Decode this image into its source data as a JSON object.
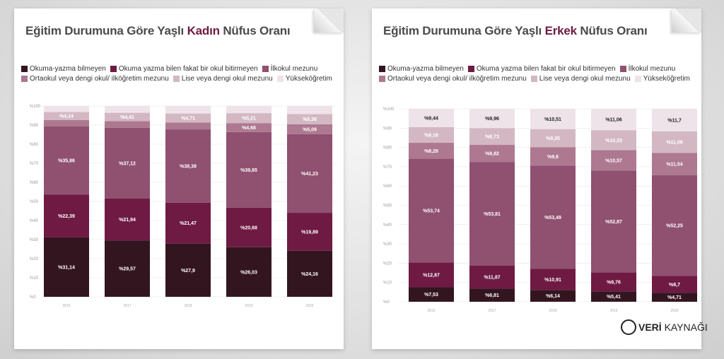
{
  "colors": [
    "#331520",
    "#6e1a43",
    "#905070",
    "#ad7890",
    "#d3b8c3",
    "#eee3e8"
  ],
  "charts": [
    {
      "title_pre": "Eğitim Durumuna Göre Yaşlı ",
      "title_hl": "Kadın",
      "title_post": " Nüfus Oranı"
    },
    {
      "title_pre": "Eğitim Durumuna Göre Yaşlı ",
      "title_hl": "Erkek",
      "title_post": " Nüfus Oranı"
    }
  ],
  "legend": {
    "left": [
      "Okuma-yazma bilmeyen",
      "Okuma yazma bilen fakat bir okul bitirmeyen",
      "İlkokul mezunu",
      "Ortaokul veya dengi okul/ ilköğretim mezunu",
      "Lise veya dengi okul mezunu",
      "Yükseköğretim"
    ],
    "right": [
      "Okuma-yazma bilmeyen",
      "Okuma yazma bilen fakat bir okul bitirmeyen",
      "İlkokul mezunu",
      "Ortaokul veya dengi okul/ ilköğretim mezunu",
      "Lise veya dengi okul mezunu",
      "Yükseköğretim"
    ]
  },
  "logo": {
    "bold": "VERİ",
    "rest": " KAYNAĞI"
  },
  "chart_data": [
    {
      "type": "bar",
      "stacked": true,
      "title": "Eğitim Durumuna Göre Yaşlı Kadın Nüfus Oranı",
      "categories": [
        "2016",
        "2017",
        "2018",
        "2019",
        "2020"
      ],
      "ylim": [
        0,
        100
      ],
      "yticks": [
        "%0",
        "%10",
        "%20",
        "%30",
        "%40",
        "%50",
        "%60",
        "%70",
        "%80",
        "%90",
        "%100"
      ],
      "series": [
        {
          "name": "Okuma-yazma bilmeyen",
          "values": [
            31.14,
            29.57,
            27.9,
            26.03,
            24.16
          ],
          "labels": [
            "%31,14",
            "%29,57",
            "%27,9",
            "%26,03",
            "%24,16"
          ]
        },
        {
          "name": "Okuma yazma bilen fakat bir okul bitirmeyen",
          "values": [
            22.39,
            21.94,
            21.47,
            20.68,
            19.89
          ],
          "labels": [
            "%22,39",
            "%21,94",
            "%21,47",
            "%20,68",
            "%19,89"
          ]
        },
        {
          "name": "İlkokul mezunu",
          "values": [
            35.86,
            37.12,
            38.38,
            39.65,
            41.23
          ],
          "labels": [
            "%35,86",
            "%37,12",
            "%38,38",
            "%39,65",
            "%41,23"
          ]
        },
        {
          "name": "Ortaokul veya dengi okul/ ilköğretim mezunu",
          "values": [
            3.3,
            3.4,
            3.6,
            4.68,
            5.09
          ],
          "labels": [
            "",
            "",
            "",
            "%4,68",
            "%5,09"
          ]
        },
        {
          "name": "Lise veya dengi okul mezunu",
          "values": [
            4.14,
            4.41,
            4.71,
            5.21,
            5.38
          ],
          "labels": [
            "%4,14",
            "%4,41",
            "%4,71",
            "%5,21",
            "%5,38"
          ]
        },
        {
          "name": "Yükseköğretim",
          "values": [
            3.17,
            3.56,
            3.94,
            3.75,
            4.25
          ],
          "labels": [
            "",
            "",
            "",
            "",
            ""
          ]
        }
      ]
    },
    {
      "type": "bar",
      "stacked": true,
      "title": "Eğitim Durumuna Göre Yaşlı Erkek Nüfus Oranı",
      "categories": [
        "2016",
        "2017",
        "2018",
        "2019",
        "2020"
      ],
      "ylim": [
        0,
        100
      ],
      "yticks": [
        "%0",
        "%10",
        "%20",
        "%30",
        "%40",
        "%50",
        "%60",
        "%70",
        "%80",
        "%90",
        "%100"
      ],
      "series": [
        {
          "name": "Okuma-yazma bilmeyen",
          "values": [
            7.53,
            6.81,
            6.14,
            5.41,
            4.71
          ],
          "labels": [
            "%7,53",
            "%6,81",
            "%6,14",
            "%5,41",
            "%4,71"
          ]
        },
        {
          "name": "Okuma yazma bilen fakat bir okul bitirmeyen",
          "values": [
            12.87,
            11.87,
            10.91,
            9.76,
            8.7
          ],
          "labels": [
            "%12,87",
            "%11,87",
            "%10,91",
            "%9,76",
            "%8,7"
          ]
        },
        {
          "name": "İlkokul mezunu",
          "values": [
            53.74,
            53.81,
            53.49,
            52.87,
            52.25
          ],
          "labels": [
            "%53,74",
            "%53,81",
            "%53,49",
            "%52,87",
            "%52,25"
          ]
        },
        {
          "name": "Ortaokul veya dengi okul/ ilköğretim mezunu",
          "values": [
            8.26,
            8.82,
            9.6,
            10.57,
            11.54
          ],
          "labels": [
            "%8,26",
            "%8,82",
            "%9,6",
            "%10,57",
            "%11,54"
          ]
        },
        {
          "name": "Lise veya dengi okul mezunu",
          "values": [
            8.16,
            8.73,
            9.35,
            10.33,
            11.09
          ],
          "labels": [
            "%8,16",
            "%8,73",
            "%9,35",
            "%10,33",
            "%11,09"
          ]
        },
        {
          "name": "Yükseköğretim",
          "values": [
            9.44,
            9.96,
            10.51,
            11.06,
            11.7
          ],
          "labels": [
            "%9,44",
            "%9,96",
            "%10,51",
            "%11,06",
            "%11,7"
          ]
        }
      ]
    }
  ]
}
